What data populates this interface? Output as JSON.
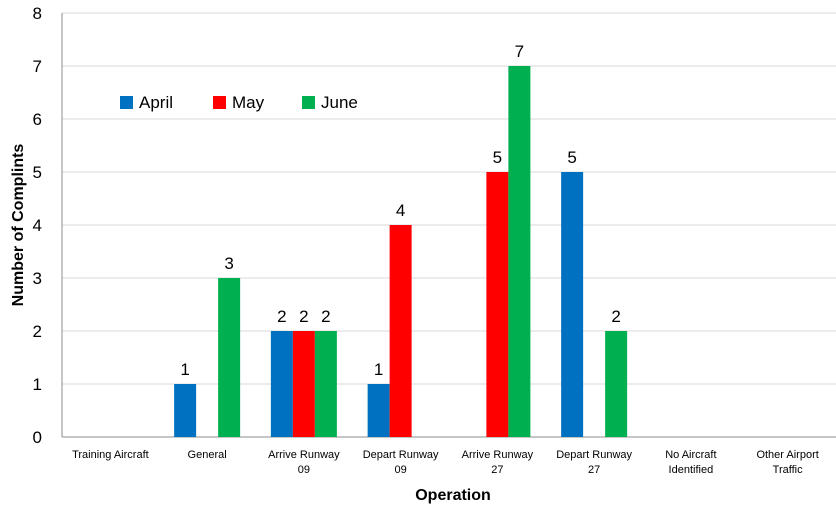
{
  "chart_data": {
    "type": "bar",
    "title": "",
    "xlabel": "Operation",
    "ylabel": "Number of Complints",
    "ylim": [
      0,
      8
    ],
    "yticks": [
      "0",
      "1",
      "2",
      "3",
      "4",
      "5",
      "6",
      "7",
      "8"
    ],
    "grid": true,
    "legend_position": "top-left",
    "categories": [
      [
        "Training Aircraft"
      ],
      [
        "General"
      ],
      [
        "Arrive Runway",
        "09"
      ],
      [
        "Depart Runway",
        "09"
      ],
      [
        "Arrive Runway",
        "27"
      ],
      [
        "Depart Runway",
        "27"
      ],
      [
        "No Aircraft",
        "Identified"
      ],
      [
        "Other Airport",
        "Traffic"
      ]
    ],
    "series": [
      {
        "name": "April",
        "color": "#0070c0",
        "values": [
          null,
          1,
          2,
          1,
          null,
          5,
          null,
          null
        ]
      },
      {
        "name": "May",
        "color": "#ff0000",
        "values": [
          null,
          null,
          2,
          4,
          5,
          null,
          null,
          null
        ]
      },
      {
        "name": "June",
        "color": "#00b050",
        "values": [
          null,
          3,
          2,
          null,
          7,
          2,
          null,
          null
        ]
      }
    ]
  }
}
